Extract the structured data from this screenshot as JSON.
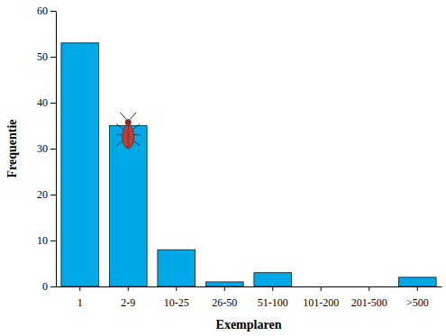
{
  "chart_data": {
    "type": "bar",
    "x_label": "Exemplaren",
    "y_label": "Frequentie",
    "categories": [
      "1",
      "2-9",
      "10-25",
      "26-50",
      "51-100",
      "101-200",
      "201-500",
      ">500"
    ],
    "values": [
      53,
      35,
      8,
      1,
      3,
      0,
      0,
      2
    ],
    "color": "#00a9e6",
    "ylim": [
      0,
      60
    ],
    "yticks": [
      0,
      10,
      20,
      30,
      40,
      50,
      60
    ],
    "grid": false
  }
}
